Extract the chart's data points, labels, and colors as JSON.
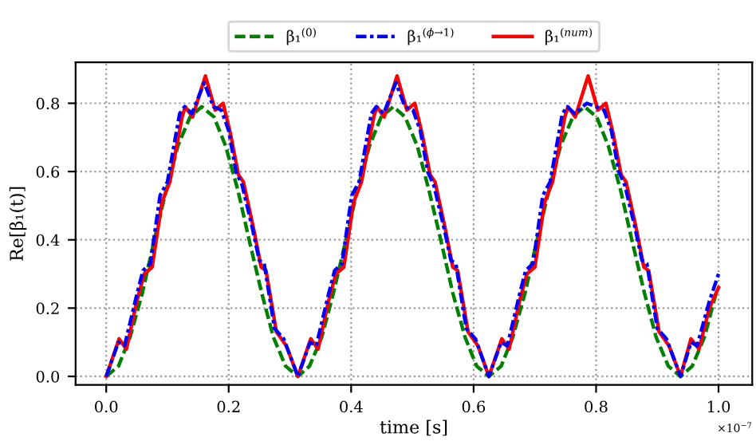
{
  "chart_data": {
    "type": "line",
    "xlabel": "time [s]",
    "ylabel": "Re[β₁(t)]",
    "xlim": [
      -0.05,
      1.055
    ],
    "ylim": [
      -0.025,
      0.92
    ],
    "xticks": [
      {
        "value": 0,
        "label": "0.0"
      },
      0.2,
      0.4,
      0.6,
      0.8,
      {
        "value": 1,
        "label": "1.0"
      }
    ],
    "yticks": [
      {
        "value": 0,
        "label": "0.0"
      },
      0.2,
      0.4,
      0.6,
      0.8
    ],
    "grid": true,
    "legend": "top",
    "marker": "none",
    "annotations": [
      "×10$^{−7}$"
    ],
    "series": [
      {
        "name": "β₁$^{(0)}$",
        "color": "#008000",
        "line_style": "dashed",
        "x": [
          0,
          0.02,
          0.039,
          0.059,
          0.078,
          0.098,
          0.117,
          0.137,
          0.156,
          0.176,
          0.195,
          0.215,
          0.234,
          0.254,
          0.273,
          0.293,
          0.313,
          0.332,
          0.352,
          0.371,
          0.391,
          0.41,
          0.43,
          0.449,
          0.469,
          0.488,
          0.508,
          0.527,
          0.547,
          0.566,
          0.586,
          0.605,
          0.625,
          0.645,
          0.664,
          0.684,
          0.703,
          0.723,
          0.742,
          0.762,
          0.781,
          0.801,
          0.82,
          0.84,
          0.859,
          0.879,
          0.898,
          0.918,
          0.938,
          0.957,
          0.977,
          0.996
        ],
        "values": [
          0,
          0.03,
          0.115,
          0.244,
          0.395,
          0.546,
          0.675,
          0.76,
          0.79,
          0.76,
          0.675,
          0.546,
          0.395,
          0.244,
          0.115,
          0.03,
          0,
          0.03,
          0.115,
          0.244,
          0.395,
          0.546,
          0.675,
          0.76,
          0.79,
          0.76,
          0.675,
          0.546,
          0.395,
          0.244,
          0.115,
          0.03,
          0,
          0.03,
          0.115,
          0.244,
          0.395,
          0.546,
          0.675,
          0.76,
          0.79,
          0.76,
          0.675,
          0.546,
          0.395,
          0.244,
          0.115,
          0.03,
          0,
          0.03,
          0.115,
          0.244
        ]
      },
      {
        "name": "β₁$^{(ϕ→1)}$",
        "color": "#0000ff",
        "line_style": "dashdot",
        "x": [
          0,
          0.02,
          0.03,
          0.05,
          0.06,
          0.072,
          0.088,
          0.1,
          0.12,
          0.128,
          0.14,
          0.16,
          0.175,
          0.188,
          0.2,
          0.212,
          0.222,
          0.238,
          0.25,
          0.258,
          0.275,
          0.29,
          0.313,
          0.333,
          0.343,
          0.363,
          0.373,
          0.385,
          0.401,
          0.413,
          0.433,
          0.441,
          0.453,
          0.473,
          0.488,
          0.501,
          0.513,
          0.525,
          0.535,
          0.551,
          0.563,
          0.571,
          0.588,
          0.603,
          0.625,
          0.645,
          0.655,
          0.675,
          0.685,
          0.697,
          0.713,
          0.725,
          0.745,
          0.753,
          0.765,
          0.785,
          0.8,
          0.813,
          0.825,
          0.837,
          0.847,
          0.863,
          0.875,
          0.883,
          0.9,
          0.915,
          0.938,
          0.955,
          0.965,
          0.985,
          1.0
        ],
        "values": [
          0,
          0.1,
          0.09,
          0.24,
          0.31,
          0.33,
          0.53,
          0.57,
          0.77,
          0.79,
          0.77,
          0.86,
          0.79,
          0.78,
          0.72,
          0.6,
          0.56,
          0.44,
          0.34,
          0.33,
          0.14,
          0.11,
          0,
          0.1,
          0.09,
          0.24,
          0.31,
          0.33,
          0.53,
          0.57,
          0.77,
          0.79,
          0.77,
          0.86,
          0.79,
          0.78,
          0.72,
          0.6,
          0.56,
          0.44,
          0.34,
          0.33,
          0.14,
          0.11,
          0,
          0.1,
          0.09,
          0.24,
          0.31,
          0.33,
          0.53,
          0.57,
          0.77,
          0.79,
          0.77,
          0.8,
          0.79,
          0.78,
          0.72,
          0.6,
          0.56,
          0.44,
          0.34,
          0.33,
          0.14,
          0.11,
          0,
          0.1,
          0.09,
          0.22,
          0.3
        ]
      },
      {
        "name": "β₁$^{(num)}$",
        "color": "#ff0000",
        "line_style": "solid",
        "x": [
          0,
          0.021,
          0.033,
          0.05,
          0.062,
          0.075,
          0.091,
          0.104,
          0.124,
          0.129,
          0.141,
          0.162,
          0.178,
          0.191,
          0.203,
          0.216,
          0.224,
          0.241,
          0.253,
          0.261,
          0.278,
          0.294,
          0.313,
          0.334,
          0.346,
          0.363,
          0.375,
          0.388,
          0.404,
          0.417,
          0.437,
          0.442,
          0.454,
          0.475,
          0.491,
          0.504,
          0.516,
          0.529,
          0.537,
          0.554,
          0.566,
          0.574,
          0.591,
          0.607,
          0.625,
          0.646,
          0.658,
          0.675,
          0.687,
          0.7,
          0.716,
          0.729,
          0.749,
          0.754,
          0.766,
          0.787,
          0.803,
          0.816,
          0.828,
          0.841,
          0.849,
          0.866,
          0.878,
          0.886,
          0.903,
          0.919,
          0.938,
          0.955,
          0.968,
          0.985,
          1.0
        ],
        "values": [
          0,
          0.11,
          0.08,
          0.22,
          0.3,
          0.32,
          0.51,
          0.57,
          0.76,
          0.79,
          0.76,
          0.88,
          0.78,
          0.8,
          0.71,
          0.59,
          0.57,
          0.43,
          0.32,
          0.31,
          0.13,
          0.09,
          0,
          0.11,
          0.08,
          0.22,
          0.3,
          0.32,
          0.51,
          0.57,
          0.76,
          0.79,
          0.76,
          0.88,
          0.78,
          0.8,
          0.71,
          0.59,
          0.57,
          0.43,
          0.32,
          0.31,
          0.13,
          0.09,
          0,
          0.11,
          0.08,
          0.22,
          0.3,
          0.32,
          0.51,
          0.57,
          0.76,
          0.79,
          0.76,
          0.88,
          0.78,
          0.8,
          0.71,
          0.59,
          0.57,
          0.43,
          0.32,
          0.31,
          0.13,
          0.09,
          0,
          0.11,
          0.08,
          0.2,
          0.26
        ]
      }
    ]
  }
}
